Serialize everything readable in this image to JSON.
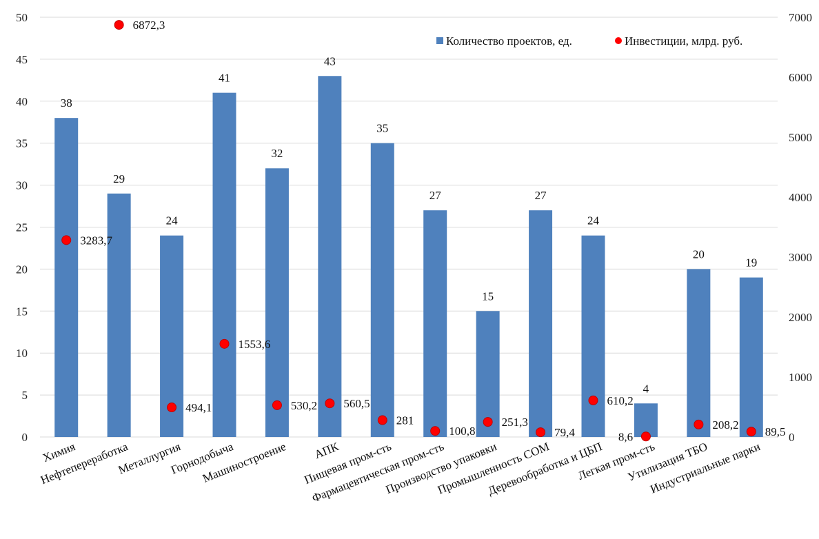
{
  "chart_data": {
    "type": "bar",
    "categories": [
      "Химия",
      "Нефтепереработка",
      "Металлургия",
      "Горнодобыча",
      "Машиностроение",
      "АПК",
      "Пищевая пром-сть",
      "Фармацевтическая пром-сть",
      "Производство упаковки",
      "Промышленность СОМ",
      "Деревообработка и ЦБП",
      "Легкая пром-сть",
      "Утилизация ТБО",
      "Индустриальные парки"
    ],
    "series": [
      {
        "name": "Количество проектов, ед.",
        "type": "bar",
        "axis": "left",
        "color": "#4f81bd",
        "values": [
          38,
          29,
          24,
          41,
          32,
          43,
          35,
          27,
          15,
          27,
          24,
          4,
          20,
          19
        ],
        "labels": [
          "38",
          "29",
          "24",
          "41",
          "32",
          "43",
          "35",
          "27",
          "15",
          "27",
          "24",
          "4",
          "20",
          "19"
        ]
      },
      {
        "name": "Инвестиции, млрд. руб.",
        "type": "scatter",
        "axis": "right",
        "color": "#ff0000",
        "values": [
          3283.7,
          6872.3,
          494.1,
          1553.6,
          530.2,
          560.5,
          281,
          100.8,
          251.3,
          79.4,
          610.2,
          8.6,
          208.2,
          89.5
        ],
        "labels": [
          "3283,7",
          "6872,3",
          "494,1",
          "1553,6",
          "530,2",
          "560,5",
          "281",
          "100,8",
          "251,3",
          "79,4",
          "610,2",
          "8,6",
          "208,2",
          "89,5"
        ]
      }
    ],
    "y_left": {
      "ylim": [
        0,
        50
      ],
      "ticks": [
        "0",
        "5",
        "10",
        "15",
        "20",
        "25",
        "30",
        "35",
        "40",
        "45",
        "50"
      ]
    },
    "y_right": {
      "ylim": [
        0,
        7000
      ],
      "ticks": [
        "0",
        "1000",
        "2000",
        "3000",
        "4000",
        "5000",
        "6000",
        "7000"
      ]
    },
    "grid": true,
    "legend_position": "top-right",
    "title": "",
    "xlabel": "",
    "ylabel": ""
  }
}
